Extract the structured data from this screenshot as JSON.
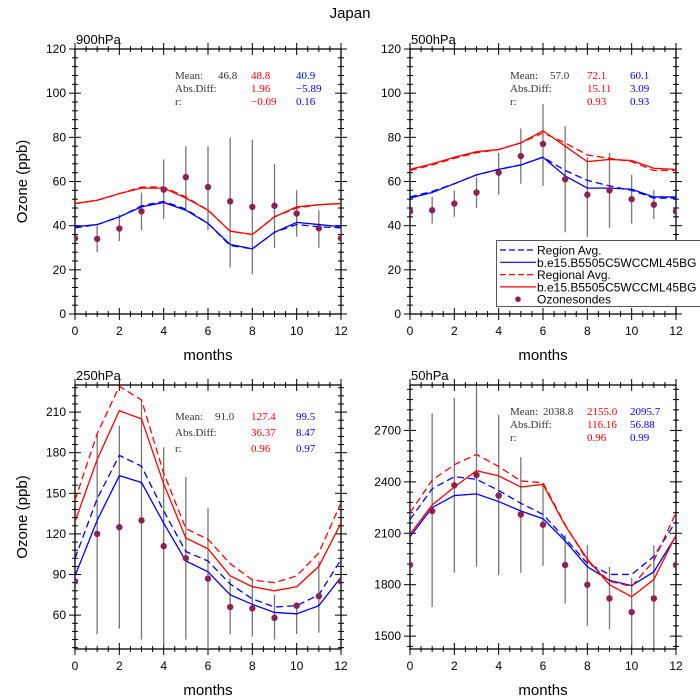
{
  "title": "Japan",
  "colors": {
    "red": "#ff0000",
    "blue": "#0000ff",
    "obs": "#8b2252",
    "errorbar": "#777777",
    "stat_label": "#333333"
  },
  "legend": {
    "placement": "inside-right of 500hPa panel",
    "entries": [
      {
        "label": "Region Avg.",
        "color": "#0000ff",
        "style": "dashed"
      },
      {
        "label": "b.e15.B5505C5WCCML45BG",
        "color": "#0000ff",
        "style": "solid"
      },
      {
        "label": "Regional Avg.",
        "color": "#ff0000",
        "style": "dashed"
      },
      {
        "label": "b.e15.B5505C5WCCML45BG",
        "color": "#ff0000",
        "style": "solid"
      },
      {
        "label": "Ozonesondes",
        "color": "#8b2252",
        "style": "marker"
      }
    ]
  },
  "chart_data": [
    {
      "type": "line",
      "title": "900hPa",
      "xlabel": "months",
      "ylabel": "Ozone (ppb)",
      "xlim": [
        0,
        12
      ],
      "ylim": [
        0,
        120
      ],
      "xticks": [
        0,
        2,
        4,
        6,
        8,
        10,
        12
      ],
      "yticks": [
        0,
        20,
        40,
        60,
        80,
        100,
        120
      ],
      "x": [
        0,
        1,
        2,
        3,
        4,
        5,
        6,
        7,
        8,
        9,
        10,
        11,
        12
      ],
      "stats": {
        "mean_label": "Mean:",
        "absdiff_label": "Abs.Diff:",
        "r_label": "r:",
        "mean_obs": "46.8",
        "mean_red": "48.8",
        "mean_blue": "40.9",
        "absdiff_red": "1.96",
        "absdiff_blue": "−5.89",
        "r_red": "−0.09",
        "r_blue": "0.16"
      },
      "series": [
        {
          "legend_index": 0,
          "color": "blue",
          "style": "dashed",
          "values": [
            39,
            40.5,
            44,
            49,
            51,
            47.5,
            41,
            31,
            29.5,
            37,
            40.5,
            39.5,
            39
          ]
        },
        {
          "legend_index": 1,
          "color": "blue",
          "style": "solid",
          "values": [
            39.5,
            40.5,
            44,
            48.5,
            50.5,
            47,
            41,
            31.5,
            29.5,
            37,
            41.5,
            40.5,
            39.5
          ]
        },
        {
          "legend_index": 2,
          "color": "red",
          "style": "dashed",
          "values": [
            50,
            51.5,
            54.5,
            57.5,
            57.5,
            53,
            47,
            37.5,
            36,
            44,
            48,
            49.5,
            50
          ]
        },
        {
          "legend_index": 3,
          "color": "red",
          "style": "solid",
          "values": [
            50,
            51.5,
            54.5,
            57,
            57,
            52.5,
            47,
            37.5,
            36,
            44,
            48.5,
            49.5,
            50
          ]
        }
      ],
      "obs": [
        34.3,
        34,
        38.7,
        46.5,
        56.3,
        62,
        57.5,
        51,
        48.5,
        49,
        45.5,
        38.8,
        34.3
      ],
      "obs_range": [
        null,
        [
          28,
          40
        ],
        [
          33,
          45
        ],
        [
          38,
          55
        ],
        [
          43,
          70
        ],
        [
          48,
          76
        ],
        [
          38,
          76
        ],
        [
          21,
          80
        ],
        [
          18,
          79
        ],
        [
          30,
          68
        ],
        [
          35,
          56
        ],
        [
          30,
          47
        ],
        [
          29,
          40
        ]
      ]
    },
    {
      "type": "line",
      "title": "500hPa",
      "xlabel": "months",
      "ylabel": "",
      "xlim": [
        0,
        12
      ],
      "ylim": [
        0,
        120
      ],
      "xticks": [
        0,
        2,
        4,
        6,
        8,
        10,
        12
      ],
      "yticks": [
        0,
        20,
        40,
        60,
        80,
        100,
        120
      ],
      "x": [
        0,
        1,
        2,
        3,
        4,
        5,
        6,
        7,
        8,
        9,
        10,
        11,
        12
      ],
      "stats": {
        "mean_label": "Mean:",
        "absdiff_label": "Abs.Diff:",
        "r_label": "r:",
        "mean_obs": "57.0",
        "mean_red": "72.1",
        "mean_blue": "60.1",
        "absdiff_red": "15.11",
        "absdiff_blue": "3.09",
        "r_red": "0.93",
        "r_blue": "0.93"
      },
      "series": [
        {
          "legend_index": 0,
          "color": "blue",
          "style": "dashed",
          "values": [
            53,
            55.5,
            59,
            63,
            65.5,
            67.5,
            71,
            65,
            60.5,
            58,
            56,
            52.5,
            52.5
          ]
        },
        {
          "legend_index": 1,
          "color": "blue",
          "style": "solid",
          "values": [
            52.5,
            55,
            59,
            63,
            65.5,
            67.5,
            71,
            62.5,
            57,
            57,
            56.5,
            53,
            53
          ]
        },
        {
          "legend_index": 2,
          "color": "red",
          "style": "dashed",
          "values": [
            65,
            67.5,
            70.5,
            73,
            74.5,
            77.5,
            82,
            77.5,
            72,
            70.5,
            69,
            65,
            65
          ]
        },
        {
          "legend_index": 3,
          "color": "red",
          "style": "solid",
          "values": [
            65.5,
            68,
            71,
            73.5,
            74.5,
            77.5,
            83,
            76,
            69,
            70,
            69.5,
            66,
            65.5
          ]
        }
      ],
      "obs": [
        46.5,
        47,
        50,
        55,
        64,
        71.5,
        77,
        61,
        54,
        56,
        52,
        49.5,
        46.5
      ],
      "obs_range": [
        null,
        [
          41,
          53
        ],
        [
          44,
          56
        ],
        [
          48,
          62
        ],
        [
          54,
          73
        ],
        [
          59,
          84
        ],
        [
          58,
          95
        ],
        [
          37,
          85
        ],
        [
          35,
          71
        ],
        [
          39,
          73
        ],
        [
          41,
          63
        ],
        [
          43,
          56
        ],
        null
      ]
    },
    {
      "type": "line",
      "title": "250hPa",
      "xlabel": "months",
      "ylabel": "Ozone (ppb)",
      "xlim": [
        0,
        12
      ],
      "ylim": [
        35,
        230
      ],
      "xticks": [
        0,
        2,
        4,
        6,
        8,
        10,
        12
      ],
      "yticks": [
        60,
        90,
        120,
        150,
        180,
        210
      ],
      "x": [
        0,
        1,
        2,
        3,
        4,
        5,
        6,
        7,
        8,
        9,
        10,
        11,
        12
      ],
      "stats": {
        "mean_label": "Mean:",
        "absdiff_label": "Abs.Diff:",
        "r_label": "r:",
        "mean_obs": "91.0",
        "mean_red": "127.4",
        "mean_blue": "99.5",
        "absdiff_red": "36.37",
        "absdiff_blue": "8.47",
        "r_red": "0.96",
        "r_blue": "0.97"
      },
      "series": [
        {
          "legend_index": 0,
          "color": "blue",
          "style": "dashed",
          "values": [
            102,
            146,
            178,
            170,
            137,
            107,
            100,
            83,
            72,
            66,
            67,
            75,
            101
          ]
        },
        {
          "legend_index": 1,
          "color": "blue",
          "style": "solid",
          "values": [
            89,
            130,
            163,
            158,
            128,
            100,
            92,
            75,
            68,
            62,
            61,
            67,
            88
          ]
        },
        {
          "legend_index": 2,
          "color": "red",
          "style": "dashed",
          "values": [
            145,
            194,
            229,
            219,
            165,
            124,
            116,
            98,
            86,
            84,
            89,
            106,
            143
          ]
        },
        {
          "legend_index": 3,
          "color": "red",
          "style": "solid",
          "values": [
            129,
            175,
            211,
            205,
            157,
            117,
            109,
            89,
            81,
            78,
            81,
            96,
            128
          ]
        }
      ],
      "obs": [
        85,
        120,
        125,
        130,
        111,
        102,
        87,
        66,
        65,
        58,
        67,
        74,
        85
      ],
      "obs_range": [
        null,
        [
          46,
          193
        ],
        [
          50,
          200
        ],
        [
          42,
          219
        ],
        [
          38,
          184
        ],
        [
          42,
          162
        ],
        [
          35,
          139
        ],
        [
          46,
          87
        ],
        [
          44,
          87
        ],
        [
          42,
          75
        ],
        [
          46,
          69
        ],
        [
          47,
          100
        ],
        null
      ]
    },
    {
      "type": "line",
      "title": "50hPa",
      "xlabel": "months",
      "ylabel": "",
      "xlim": [
        0,
        12
      ],
      "ylim": [
        1425,
        2965
      ],
      "xticks": [
        0,
        2,
        4,
        6,
        8,
        10,
        12
      ],
      "yticks": [
        1500,
        1800,
        2100,
        2400,
        2700
      ],
      "x": [
        0,
        1,
        2,
        3,
        4,
        5,
        6,
        7,
        8,
        9,
        10,
        11,
        12
      ],
      "stats": {
        "mean_label": "Mean:",
        "absdiff_label": "Abs.Diff:",
        "r_label": "r:",
        "mean_obs": "2038.8",
        "mean_red": "2155.0",
        "mean_blue": "2095.7",
        "absdiff_red": "116.16",
        "absdiff_blue": "56.88",
        "r_red": "0.96",
        "r_blue": "0.99"
      },
      "series": [
        {
          "legend_index": 0,
          "color": "blue",
          "style": "dashed",
          "values": [
            2180,
            2360,
            2430,
            2415,
            2350,
            2275,
            2210,
            2070,
            1925,
            1860,
            1860,
            1965,
            2170
          ]
        },
        {
          "legend_index": 1,
          "color": "blue",
          "style": "solid",
          "values": [
            2080,
            2250,
            2320,
            2330,
            2285,
            2230,
            2185,
            2055,
            1905,
            1825,
            1795,
            1875,
            2085
          ]
        },
        {
          "legend_index": 2,
          "color": "red",
          "style": "dashed",
          "values": [
            2220,
            2410,
            2500,
            2560,
            2490,
            2405,
            2395,
            2150,
            1940,
            1820,
            1790,
            1940,
            2220
          ]
        },
        {
          "legend_index": 3,
          "color": "red",
          "style": "solid",
          "values": [
            2095,
            2265,
            2370,
            2465,
            2435,
            2370,
            2385,
            2145,
            1950,
            1800,
            1730,
            1830,
            2090
          ]
        }
      ],
      "obs": [
        1915,
        2230,
        2380,
        2440,
        2320,
        2210,
        2150,
        1915,
        1800,
        1720,
        1640,
        1720,
        1915
      ],
      "obs_range": [
        null,
        [
          1670,
          2800
        ],
        [
          1870,
          2890
        ],
        [
          1905,
          2960
        ],
        [
          1855,
          2790
        ],
        [
          1870,
          2545
        ],
        [
          1910,
          2385
        ],
        [
          1690,
          2090
        ],
        [
          1560,
          2030
        ],
        [
          1540,
          1905
        ],
        [
          1440,
          1840
        ],
        [
          1430,
          2030
        ],
        null
      ]
    }
  ]
}
